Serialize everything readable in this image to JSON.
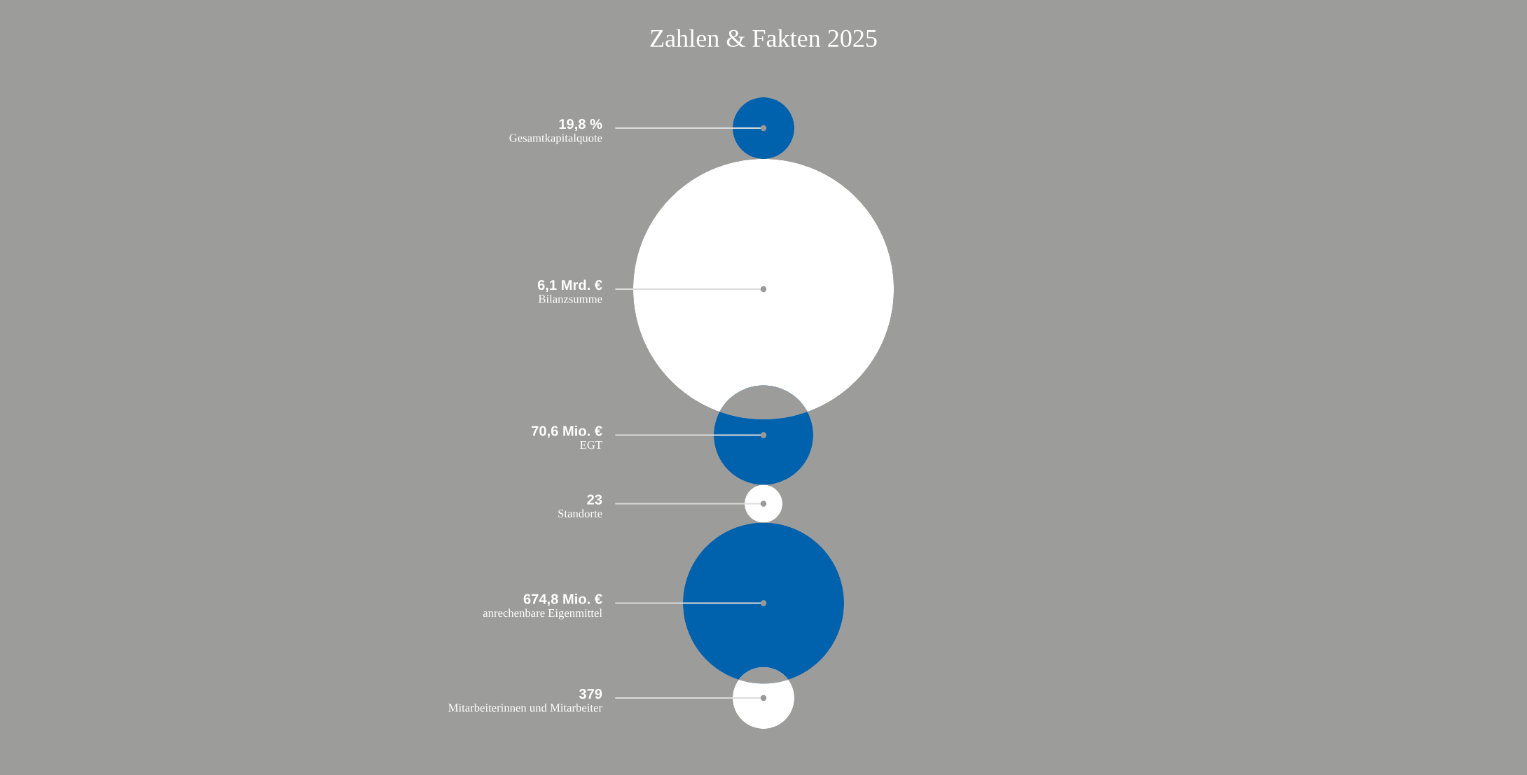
{
  "chart_data": {
    "type": "other",
    "title": "Zahlen & Fakten 2025",
    "categories": [
      "Gesamtkapitalquote",
      "Bilanzsumme",
      "EGT",
      "Standorte",
      "anrechenbare Eigenmittel",
      "Mitarbeiterinnen und Mitarbeiter"
    ],
    "values": [
      19.8,
      6.1,
      70.6,
      23,
      674.8,
      379
    ],
    "value_labels": [
      "19,8 %",
      "6,1 Mrd. €",
      "70,6 Mio. €",
      "23",
      "674,8 Mio. €",
      "379"
    ]
  }
}
